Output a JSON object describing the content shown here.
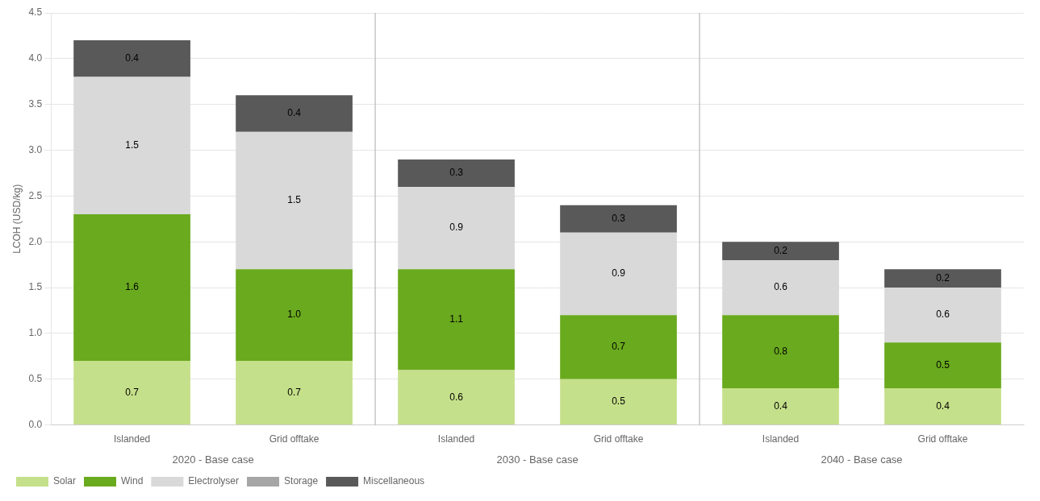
{
  "chart_data": {
    "type": "bar",
    "stacked": true,
    "ylabel": "LCOH (USD/kg)",
    "categories": [
      "Islanded",
      "Grid offtake",
      "Islanded",
      "Grid offtake",
      "Islanded",
      "Grid offtake"
    ],
    "group_labels": [
      "2020 - Base case",
      "2030 - Base case",
      "2040 - Base case"
    ],
    "series": [
      {
        "name": "Solar",
        "color": "#c5e08a",
        "values": [
          0.7,
          0.7,
          0.6,
          0.5,
          0.4,
          0.4
        ],
        "value_labels": [
          "0.7",
          "0.7",
          "0.6",
          "0.5",
          "0.4",
          "0.4"
        ]
      },
      {
        "name": "Wind",
        "color": "#6aaa1e",
        "values": [
          1.6,
          1.0,
          1.1,
          0.7,
          0.8,
          0.5
        ],
        "value_labels": [
          "1.6",
          "1.0",
          "1.1",
          "0.7",
          "0.8",
          "0.5"
        ]
      },
      {
        "name": "Electrolyser",
        "color": "#d9d9d9",
        "values": [
          1.5,
          1.5,
          0.9,
          0.9,
          0.6,
          0.6
        ],
        "value_labels": [
          "1.5",
          "1.5",
          "0.9",
          "0.9",
          "0.6",
          "0.6"
        ]
      },
      {
        "name": "Storage",
        "color": "#a6a6a6",
        "values": [
          0.0,
          0.0,
          0.0,
          0.0,
          0.0,
          0.0
        ],
        "value_labels": [
          null,
          null,
          null,
          null,
          null,
          null
        ]
      },
      {
        "name": "Miscellaneous",
        "color": "#595959",
        "values": [
          0.4,
          0.4,
          0.3,
          0.3,
          0.2,
          0.2
        ],
        "value_labels": [
          "0.4",
          "0.4",
          "0.3",
          "0.3",
          "0.2",
          "0.2"
        ]
      }
    ],
    "ylim": [
      0,
      4.5
    ],
    "yticks": [
      {
        "value": 0,
        "label": "0.0"
      },
      0.5,
      {
        "value": 1,
        "label": "1.0"
      },
      1.5,
      {
        "value": 2,
        "label": "2.0"
      },
      2.5,
      {
        "value": 3,
        "label": "3.0"
      },
      3.5,
      {
        "value": 4,
        "label": "4.0"
      },
      4.5
    ],
    "grid": true,
    "legend": "bottom-left",
    "data_labels": true
  }
}
